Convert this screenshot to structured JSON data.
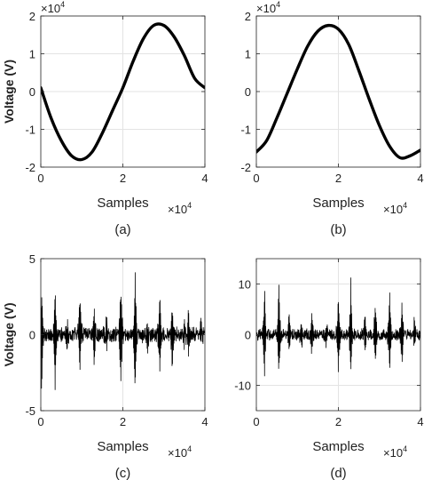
{
  "chart_data": [
    {
      "id": "a",
      "caption": "(a)",
      "type": "line",
      "signal": "smooth",
      "xlabel": "Samples",
      "ylabel": "Voltage (V)",
      "xlim": [
        0,
        4
      ],
      "ylim": [
        -2,
        2
      ],
      "xticks": [
        0,
        2,
        4
      ],
      "yticks": [
        -2,
        -1,
        0,
        1,
        2
      ],
      "x_multiplier_base": "×10",
      "x_multiplier_exp": "4",
      "y_multiplier_base": "×10",
      "y_multiplier_exp": "4",
      "grid": true,
      "line_color": "#000000",
      "x": [
        0,
        0.25,
        0.5,
        0.75,
        1.0,
        1.25,
        1.5,
        1.75,
        2.0,
        2.25,
        2.5,
        2.75,
        3.0,
        3.25,
        3.5,
        3.75,
        4.0
      ],
      "y": [
        0.1,
        -0.7,
        -1.3,
        -1.7,
        -1.8,
        -1.6,
        -1.1,
        -0.5,
        0.1,
        0.8,
        1.4,
        1.75,
        1.75,
        1.45,
        0.95,
        0.35,
        0.1
      ]
    },
    {
      "id": "b",
      "caption": "(b)",
      "type": "line",
      "signal": "smooth",
      "xlabel": "Samples",
      "ylabel": "",
      "xlim": [
        0,
        4
      ],
      "ylim": [
        -2,
        2
      ],
      "xticks": [
        0,
        2,
        4
      ],
      "yticks": [
        -2,
        -1,
        0,
        1,
        2
      ],
      "x_multiplier_base": "×10",
      "x_multiplier_exp": "4",
      "y_multiplier_base": "×10",
      "y_multiplier_exp": "4",
      "grid": true,
      "line_color": "#000000",
      "x": [
        0,
        0.25,
        0.5,
        0.75,
        1.0,
        1.25,
        1.5,
        1.75,
        2.0,
        2.25,
        2.5,
        2.75,
        3.0,
        3.25,
        3.5,
        3.75,
        4.0
      ],
      "y": [
        -1.6,
        -1.3,
        -0.7,
        -0.05,
        0.6,
        1.2,
        1.6,
        1.75,
        1.65,
        1.25,
        0.55,
        -0.2,
        -0.9,
        -1.45,
        -1.75,
        -1.7,
        -1.55
      ]
    },
    {
      "id": "c",
      "caption": "(c)",
      "type": "line",
      "signal": "noisy",
      "xlabel": "Samples",
      "ylabel": "Voltage (V)",
      "xlim": [
        0,
        4
      ],
      "ylim": [
        -5,
        5
      ],
      "xticks": [
        0,
        2,
        4
      ],
      "yticks": [
        -5,
        0,
        5
      ],
      "x_multiplier_base": "×10",
      "x_multiplier_exp": "4",
      "grid": true,
      "line_color": "#000000",
      "noise_amplitude": 0.6,
      "spikes": [
        {
          "x": 0.02,
          "hi": 3.8,
          "lo": -4.5
        },
        {
          "x": 0.35,
          "hi": 4.0,
          "lo": -4.4
        },
        {
          "x": 0.65,
          "hi": 1.2,
          "lo": -1.1
        },
        {
          "x": 0.95,
          "hi": 3.2,
          "lo": -3.0
        },
        {
          "x": 1.3,
          "hi": 2.4,
          "lo": -2.3
        },
        {
          "x": 1.6,
          "hi": 1.1,
          "lo": -1.0
        },
        {
          "x": 1.95,
          "hi": 4.2,
          "lo": -4.0
        },
        {
          "x": 2.3,
          "hi": 4.6,
          "lo": -4.3
        },
        {
          "x": 2.6,
          "hi": 1.3,
          "lo": -1.2
        },
        {
          "x": 2.9,
          "hi": 3.3,
          "lo": -3.2
        },
        {
          "x": 3.2,
          "hi": 2.5,
          "lo": -2.3
        },
        {
          "x": 3.5,
          "hi": 1.0,
          "lo": -1.0
        },
        {
          "x": 3.6,
          "hi": 1.8,
          "lo": -1.6
        },
        {
          "x": 3.9,
          "hi": 1.2,
          "lo": -1.2
        }
      ]
    },
    {
      "id": "d",
      "caption": "(d)",
      "type": "line",
      "signal": "noisy",
      "xlabel": "Samples",
      "ylabel": "",
      "xlim": [
        0,
        4
      ],
      "ylim": [
        -15,
        15
      ],
      "xticks": [
        0,
        2,
        4
      ],
      "yticks": [
        -10,
        0,
        10
      ],
      "x_multiplier_base": "×10",
      "x_multiplier_exp": "4",
      "grid": true,
      "line_color": "#000000",
      "noise_amplitude": 1.3,
      "spikes": [
        {
          "x": 0.2,
          "hi": 10.5,
          "lo": -9.5
        },
        {
          "x": 0.55,
          "hi": 11.5,
          "lo": -10.5
        },
        {
          "x": 0.8,
          "hi": 5.0,
          "lo": -4.5
        },
        {
          "x": 1.1,
          "hi": 3.5,
          "lo": -3.5
        },
        {
          "x": 1.35,
          "hi": 5.0,
          "lo": -4.5
        },
        {
          "x": 1.7,
          "hi": 3.0,
          "lo": -3.0
        },
        {
          "x": 2.0,
          "hi": 9.0,
          "lo": -8.0
        },
        {
          "x": 2.3,
          "hi": 10.5,
          "lo": -9.5
        },
        {
          "x": 2.65,
          "hi": 4.5,
          "lo": -4.0
        },
        {
          "x": 2.9,
          "hi": 8.0,
          "lo": -7.0
        },
        {
          "x": 3.25,
          "hi": 10.0,
          "lo": -9.0
        },
        {
          "x": 3.55,
          "hi": 8.0,
          "lo": -7.5
        },
        {
          "x": 3.85,
          "hi": 4.0,
          "lo": -3.5
        }
      ]
    }
  ]
}
